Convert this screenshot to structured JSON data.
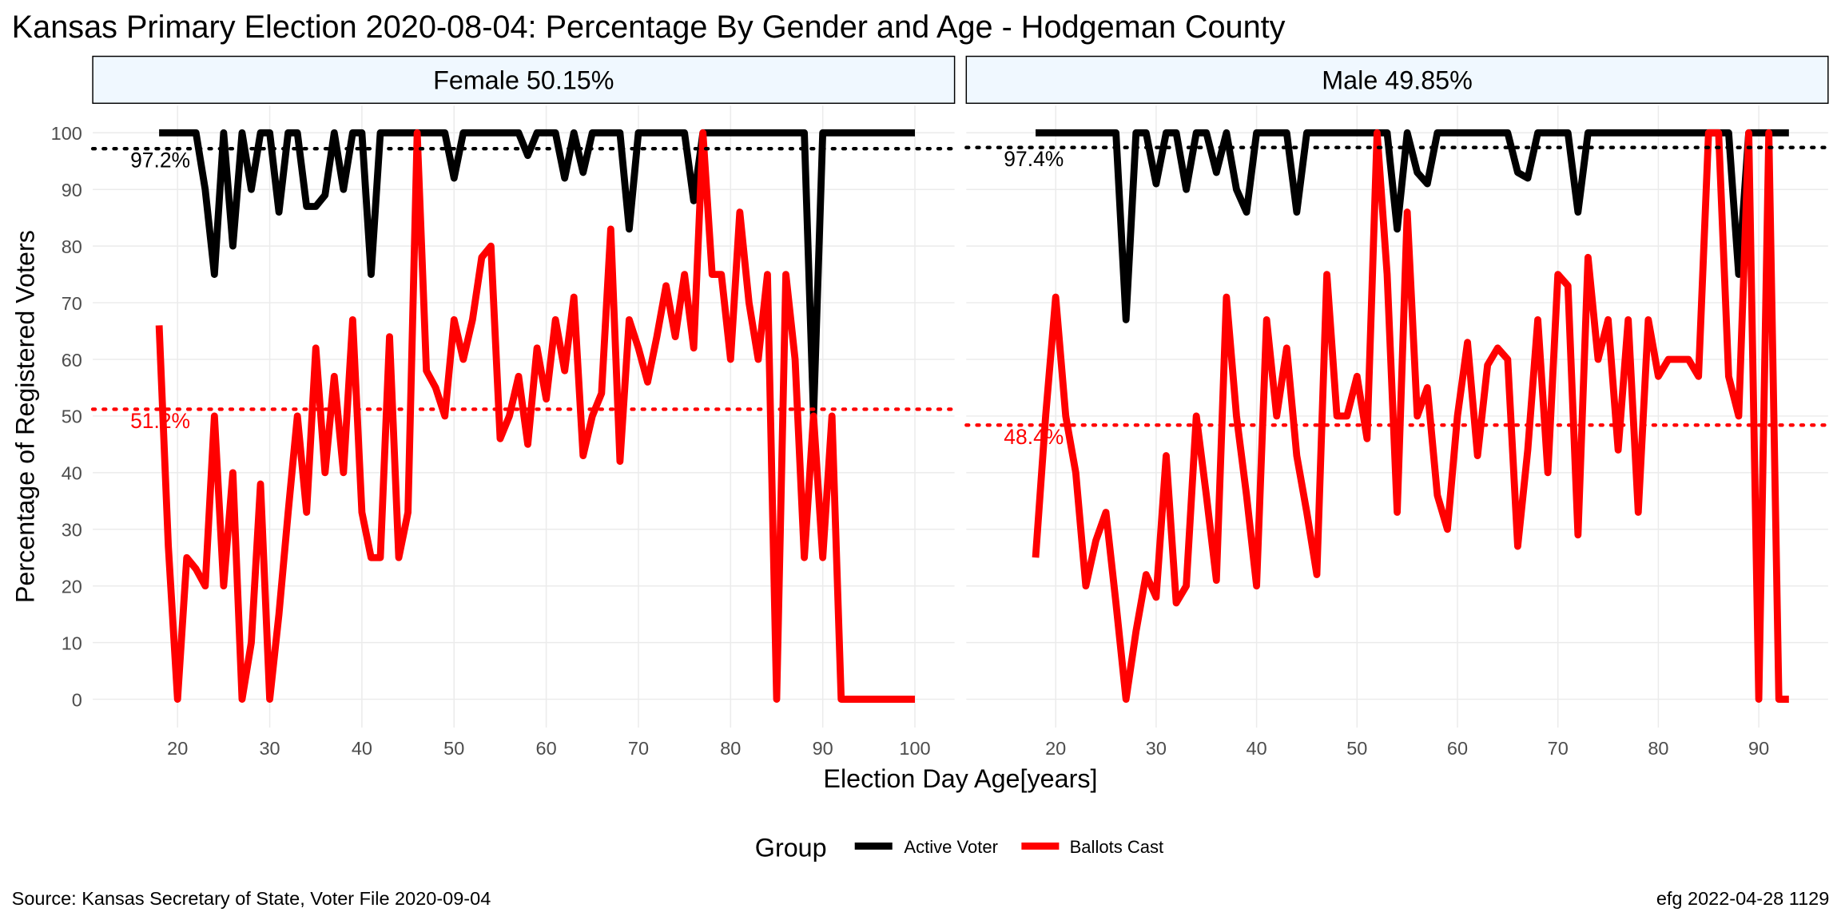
{
  "title": "Kansas Primary Election 2020-08-04:  Percentage By Gender and Age - Hodgeman County",
  "x_label": "Election Day Age[years]",
  "y_label": "Percentage of Registered Voters",
  "legend_title": "Group",
  "source": "Source:  Kansas Secretary of State, Voter File  2020-09-04",
  "credit": "efg 2022-04-28 1129",
  "chart_data": [
    {
      "type": "line",
      "facet": "Female 50.15%",
      "x": [
        18,
        19,
        20,
        21,
        22,
        23,
        24,
        25,
        26,
        27,
        28,
        29,
        30,
        31,
        32,
        33,
        34,
        35,
        36,
        37,
        38,
        39,
        40,
        41,
        42,
        43,
        44,
        45,
        46,
        47,
        48,
        49,
        50,
        51,
        52,
        53,
        54,
        55,
        56,
        57,
        58,
        59,
        60,
        61,
        62,
        63,
        64,
        65,
        66,
        67,
        68,
        69,
        70,
        71,
        72,
        73,
        74,
        75,
        76,
        77,
        78,
        79,
        80,
        81,
        82,
        83,
        84,
        85,
        86,
        87,
        88,
        89,
        90,
        91,
        92,
        93,
        94,
        95,
        96,
        97,
        98,
        99,
        100
      ],
      "series": [
        {
          "name": "Active Voter",
          "color": "#000000",
          "values": [
            100,
            100,
            100,
            100,
            100,
            90,
            75,
            100,
            80,
            100,
            90,
            100,
            100,
            86,
            100,
            100,
            87,
            87,
            89,
            100,
            90,
            100,
            100,
            75,
            100,
            100,
            100,
            100,
            100,
            100,
            100,
            100,
            92,
            100,
            100,
            100,
            100,
            100,
            100,
            100,
            96,
            100,
            100,
            100,
            92,
            100,
            93,
            100,
            100,
            100,
            100,
            83,
            100,
            100,
            100,
            100,
            100,
            100,
            88,
            100,
            100,
            100,
            100,
            100,
            100,
            100,
            100,
            100,
            100,
            100,
            100,
            50,
            100,
            100,
            100,
            100,
            100,
            100,
            100,
            100,
            100,
            100,
            100
          ]
        },
        {
          "name": "Ballots Cast",
          "color": "#ff0000",
          "values": [
            66,
            27,
            0,
            25,
            23,
            20,
            50,
            20,
            40,
            0,
            10,
            38,
            0,
            15,
            33,
            50,
            33,
            62,
            40,
            57,
            40,
            67,
            33,
            25,
            25,
            64,
            25,
            33,
            100,
            58,
            55,
            50,
            67,
            60,
            67,
            78,
            80,
            46,
            50,
            57,
            45,
            62,
            53,
            67,
            58,
            71,
            43,
            50,
            54,
            83,
            42,
            67,
            62,
            56,
            64,
            73,
            64,
            75,
            62,
            100,
            75,
            75,
            60,
            86,
            70,
            60,
            75,
            0,
            75,
            60,
            25,
            50,
            25,
            50,
            0,
            0,
            0,
            0,
            0,
            0,
            0,
            0,
            0
          ]
        }
      ],
      "hlines": [
        {
          "value": 97.2,
          "label": "97.2%",
          "color": "#000000"
        },
        {
          "value": 51.2,
          "label": "51.2%",
          "color": "#ff0000"
        }
      ],
      "xlim": [
        10.8,
        104.3
      ],
      "ylim": [
        -5,
        104.8
      ],
      "xticks": [
        20,
        30,
        40,
        50,
        60,
        70,
        80,
        90,
        100
      ],
      "yticks": [
        0,
        10,
        20,
        30,
        40,
        50,
        60,
        70,
        80,
        90,
        100
      ],
      "grid": true
    },
    {
      "type": "line",
      "facet": "Male 49.85%",
      "x": [
        18,
        19,
        20,
        21,
        22,
        23,
        24,
        25,
        26,
        27,
        28,
        29,
        30,
        31,
        32,
        33,
        34,
        35,
        36,
        37,
        38,
        39,
        40,
        41,
        42,
        43,
        44,
        45,
        46,
        47,
        48,
        49,
        50,
        51,
        52,
        53,
        54,
        55,
        56,
        57,
        58,
        59,
        60,
        61,
        62,
        63,
        64,
        65,
        66,
        67,
        68,
        69,
        70,
        71,
        72,
        73,
        74,
        75,
        76,
        77,
        78,
        79,
        80,
        81,
        82,
        83,
        84,
        85,
        86,
        87,
        88,
        89,
        90,
        91,
        92,
        93
      ],
      "series": [
        {
          "name": "Active Voter",
          "color": "#000000",
          "values": [
            100,
            100,
            100,
            100,
            100,
            100,
            100,
            100,
            100,
            67,
            100,
            100,
            91,
            100,
            100,
            90,
            100,
            100,
            93,
            100,
            90,
            86,
            100,
            100,
            100,
            100,
            86,
            100,
            100,
            100,
            100,
            100,
            100,
            100,
            100,
            100,
            83,
            100,
            93,
            91,
            100,
            100,
            100,
            100,
            100,
            100,
            100,
            100,
            93,
            92,
            100,
            100,
            100,
            100,
            86,
            100,
            100,
            100,
            100,
            100,
            100,
            100,
            100,
            100,
            100,
            100,
            100,
            100,
            100,
            100,
            75,
            100,
            100,
            100,
            100,
            100
          ]
        },
        {
          "name": "Ballots Cast",
          "color": "#ff0000",
          "values": [
            25,
            50,
            71,
            50,
            40,
            20,
            28,
            33,
            17,
            0,
            12,
            22,
            18,
            43,
            17,
            20,
            50,
            36,
            21,
            71,
            50,
            36,
            20,
            67,
            50,
            62,
            43,
            33,
            22,
            75,
            50,
            50,
            57,
            46,
            100,
            75,
            33,
            86,
            50,
            55,
            36,
            30,
            50,
            63,
            43,
            59,
            62,
            60,
            27,
            44,
            67,
            40,
            75,
            73,
            29,
            78,
            60,
            67,
            44,
            67,
            33,
            67,
            57,
            60,
            60,
            60,
            57,
            100,
            100,
            57,
            50,
            100,
            0,
            100,
            0,
            0
          ]
        }
      ],
      "hlines": [
        {
          "value": 97.4,
          "label": "97.4%",
          "color": "#000000"
        },
        {
          "value": 48.4,
          "label": "48.4%",
          "color": "#ff0000"
        }
      ],
      "xlim": [
        11.1,
        96.9
      ],
      "ylim": [
        -5,
        104.8
      ],
      "xticks": [
        20,
        30,
        40,
        50,
        60,
        70,
        80,
        90
      ],
      "yticks": [
        0,
        10,
        20,
        30,
        40,
        50,
        60,
        70,
        80,
        90,
        100
      ],
      "grid": true
    }
  ]
}
